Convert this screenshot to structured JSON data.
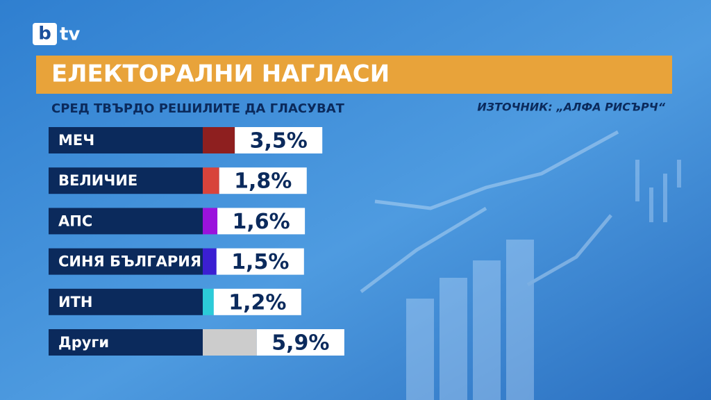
{
  "logo": {
    "mark": "b",
    "text": "tv"
  },
  "chart_data": {
    "type": "bar",
    "orientation": "horizontal",
    "title": "ЕЛЕКТОРАЛНИ НАГЛАСИ",
    "subtitle": "СРЕД ТВЪРДО РЕШИЛИТЕ ДА ГЛАСУВАТ",
    "source": "ИЗТОЧНИК: „АЛФА РИСЪРЧ“",
    "categories": [
      "МЕЧ",
      "ВЕЛИЧИЕ",
      "АПС",
      "СИНЯ БЪЛГАРИЯ",
      "ИТН",
      "Други"
    ],
    "values": [
      3.5,
      1.8,
      1.6,
      1.5,
      1.2,
      5.9
    ],
    "value_labels": [
      "3,5%",
      "1,8%",
      "1,6%",
      "1,5%",
      "1,2%",
      "5,9%"
    ],
    "colors": [
      "#8e1f1f",
      "#d8433b",
      "#9a12dc",
      "#3b1fd2",
      "#2ccbd8",
      "#cccccc"
    ]
  }
}
